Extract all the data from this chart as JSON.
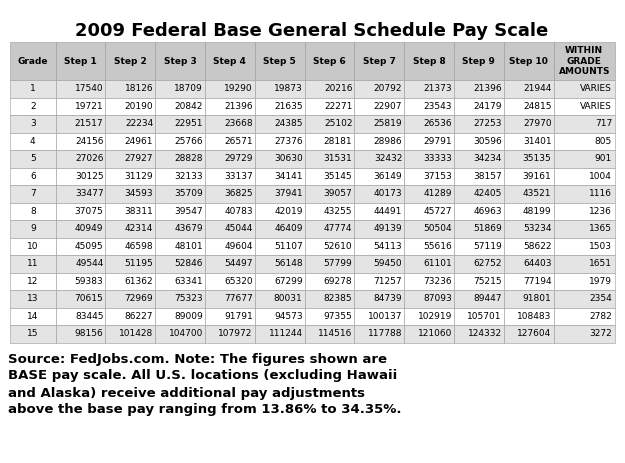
{
  "title": "2009 Federal Base General Schedule Pay Scale",
  "headers": [
    "Grade",
    "Step 1",
    "Step 2",
    "Step 3",
    "Step 4",
    "Step 5",
    "Step 6",
    "Step 7",
    "Step 8",
    "Step 9",
    "Step 10",
    "WITHIN\nGRADE\nAMOUNTS"
  ],
  "rows": [
    [
      1,
      17540,
      18126,
      18709,
      19290,
      19873,
      20216,
      20792,
      21373,
      21396,
      21944,
      "VARIES"
    ],
    [
      2,
      19721,
      20190,
      20842,
      21396,
      21635,
      22271,
      22907,
      23543,
      24179,
      24815,
      "VARIES"
    ],
    [
      3,
      21517,
      22234,
      22951,
      23668,
      24385,
      25102,
      25819,
      26536,
      27253,
      27970,
      "717"
    ],
    [
      4,
      24156,
      24961,
      25766,
      26571,
      27376,
      28181,
      28986,
      29791,
      30596,
      31401,
      "805"
    ],
    [
      5,
      27026,
      27927,
      28828,
      29729,
      30630,
      31531,
      32432,
      33333,
      34234,
      35135,
      "901"
    ],
    [
      6,
      30125,
      31129,
      32133,
      33137,
      34141,
      35145,
      36149,
      37153,
      38157,
      39161,
      "1004"
    ],
    [
      7,
      33477,
      34593,
      35709,
      36825,
      37941,
      39057,
      40173,
      41289,
      42405,
      43521,
      "1116"
    ],
    [
      8,
      37075,
      38311,
      39547,
      40783,
      42019,
      43255,
      44491,
      45727,
      46963,
      48199,
      "1236"
    ],
    [
      9,
      40949,
      42314,
      43679,
      45044,
      46409,
      47774,
      49139,
      50504,
      51869,
      53234,
      "1365"
    ],
    [
      10,
      45095,
      46598,
      48101,
      49604,
      51107,
      52610,
      54113,
      55616,
      57119,
      58622,
      "1503"
    ],
    [
      11,
      49544,
      51195,
      52846,
      54497,
      56148,
      57799,
      59450,
      61101,
      62752,
      64403,
      "1651"
    ],
    [
      12,
      59383,
      61362,
      63341,
      65320,
      67299,
      69278,
      71257,
      73236,
      75215,
      77194,
      "1979"
    ],
    [
      13,
      70615,
      72969,
      75323,
      77677,
      80031,
      82385,
      84739,
      87093,
      89447,
      91801,
      "2354"
    ],
    [
      14,
      83445,
      86227,
      89009,
      91791,
      94573,
      97355,
      100137,
      102919,
      105701,
      108483,
      "2782"
    ],
    [
      15,
      98156,
      101428,
      104700,
      107972,
      111244,
      114516,
      117788,
      121060,
      124332,
      127604,
      "3272"
    ]
  ],
  "footer": "Source: FedJobs.com. Note: The figures shown are\nBASE pay scale. All U.S. locations (excluding Hawaii\nand Alaska) receive additional pay adjustments\nabove the base pay ranging from 13.86% to 34.35%.",
  "header_bg": "#c8c8c8",
  "alt_row_bg": "#e4e4e4",
  "white_row_bg": "#ffffff",
  "border_color": "#999999",
  "title_fontsize": 13,
  "table_fontsize": 6.5,
  "footer_fontsize": 9.5
}
